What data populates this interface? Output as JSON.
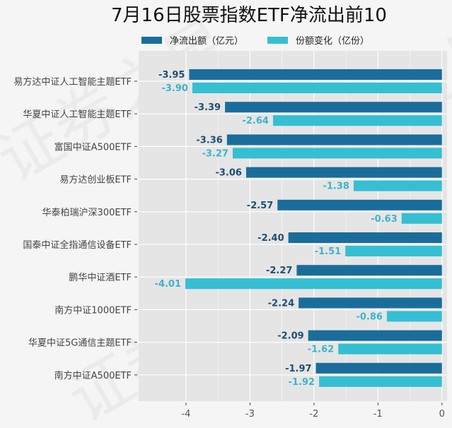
{
  "chart_data": {
    "type": "bar",
    "orientation": "horizontal",
    "title": "7月16日股票指数ETF净流出前10",
    "xlabel": "",
    "ylabel": "",
    "xlim": [
      -4.74,
      0.08
    ],
    "xticks": [
      -4,
      -3,
      -2,
      -1,
      0
    ],
    "xtick_labels": [
      "-4",
      "-3",
      "-2",
      "-1",
      "0"
    ],
    "grid": true,
    "legend_position": "top-center",
    "categories": [
      "易方达中证人工智能主题ETF",
      "华夏中证人工智能主题ETF",
      "富国中证A500ETF",
      "易方达创业板ETF",
      "华泰柏瑞沪深300ETF",
      "国泰中证全指通信设备ETF",
      "鹏华中证酒ETF",
      "南方中证1000ETF",
      "华夏中证5G通信主题ETF",
      "南方中证A500ETF"
    ],
    "series": [
      {
        "name": "净流出额（亿元）",
        "color": "#1a6d9b",
        "label_color": "#1d4f73",
        "values": [
          -3.95,
          -3.39,
          -3.36,
          -3.06,
          -2.57,
          -2.4,
          -2.27,
          -2.24,
          -2.09,
          -1.97
        ],
        "labels": [
          "-3.95",
          "-3.39",
          "-3.36",
          "-3.06",
          "-2.57",
          "-2.40",
          "-2.27",
          "-2.24",
          "-2.09",
          "-1.97"
        ]
      },
      {
        "name": "份额变化（亿份）",
        "color": "#35bfd3",
        "label_color": "#3ab4cb",
        "values": [
          -3.9,
          -2.64,
          -3.27,
          -1.38,
          -0.63,
          -1.51,
          -4.01,
          -0.86,
          -1.62,
          -1.92
        ],
        "labels": [
          "-3.90",
          "-2.64",
          "-3.27",
          "-1.38",
          "-0.63",
          "-1.51",
          "-4.01",
          "-0.86",
          "-1.62",
          "-1.92"
        ]
      }
    ]
  },
  "watermark": "证券之星",
  "colors": {
    "background": "#f5f5f5",
    "panel": "#e5e5e5",
    "grid": "#ffffff"
  }
}
